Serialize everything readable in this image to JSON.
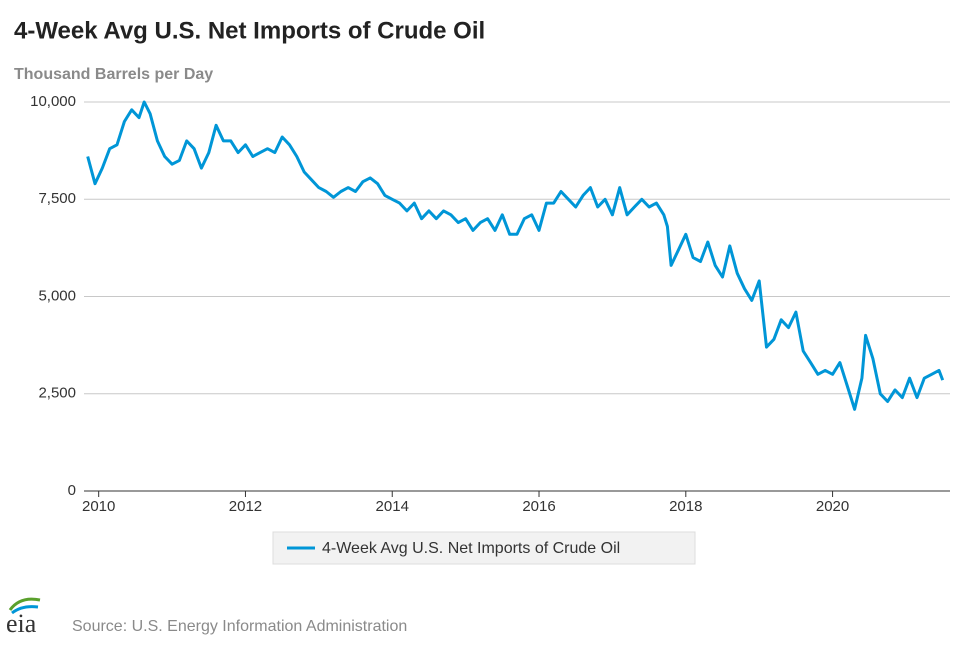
{
  "chart_data": {
    "type": "line",
    "title": "4-Week Avg U.S. Net Imports of Crude Oil",
    "y_label": "Thousand Barrels per Day",
    "source": "Source: U.S. Energy Information Administration",
    "logo": "eia",
    "xlim": [
      2009.8,
      2021.6
    ],
    "xticks": [
      2010,
      2012,
      2014,
      2016,
      2018,
      2020
    ],
    "ylim": [
      0,
      10000
    ],
    "yticks": [
      0,
      {
        "value": 2500,
        "label": "2,500"
      },
      {
        "value": 5000,
        "label": "5,000"
      },
      {
        "value": 7500,
        "label": "7,500"
      },
      {
        "value": 10000,
        "label": "10,000"
      }
    ],
    "grid": true,
    "legend": "bottom",
    "x": [
      2009.85,
      2009.95,
      2010.05,
      2010.15,
      2010.25,
      2010.35,
      2010.45,
      2010.55,
      2010.62,
      2010.7,
      2010.8,
      2010.9,
      2011.0,
      2011.1,
      2011.2,
      2011.3,
      2011.4,
      2011.5,
      2011.6,
      2011.7,
      2011.8,
      2011.9,
      2012.0,
      2012.1,
      2012.2,
      2012.3,
      2012.4,
      2012.5,
      2012.6,
      2012.7,
      2012.8,
      2012.9,
      2013.0,
      2013.1,
      2013.2,
      2013.3,
      2013.4,
      2013.5,
      2013.6,
      2013.7,
      2013.8,
      2013.9,
      2014.0,
      2014.1,
      2014.2,
      2014.3,
      2014.4,
      2014.5,
      2014.6,
      2014.7,
      2014.8,
      2014.9,
      2015.0,
      2015.1,
      2015.2,
      2015.3,
      2015.4,
      2015.5,
      2015.6,
      2015.7,
      2015.8,
      2015.9,
      2016.0,
      2016.1,
      2016.2,
      2016.3,
      2016.4,
      2016.5,
      2016.6,
      2016.7,
      2016.8,
      2016.9,
      2017.0,
      2017.1,
      2017.2,
      2017.3,
      2017.4,
      2017.5,
      2017.6,
      2017.7,
      2017.75,
      2017.8,
      2017.9,
      2018.0,
      2018.1,
      2018.2,
      2018.3,
      2018.4,
      2018.5,
      2018.6,
      2018.7,
      2018.8,
      2018.9,
      2019.0,
      2019.1,
      2019.2,
      2019.3,
      2019.4,
      2019.5,
      2019.6,
      2019.7,
      2019.8,
      2019.9,
      2020.0,
      2020.1,
      2020.2,
      2020.3,
      2020.4,
      2020.45,
      2020.55,
      2020.65,
      2020.75,
      2020.85,
      2020.95,
      2021.05,
      2021.15,
      2021.25,
      2021.35,
      2021.45,
      2021.5
    ],
    "series": [
      {
        "name": "4-Week Avg U.S. Net Imports of Crude Oil",
        "color": "#0096d7",
        "values": [
          8600,
          7900,
          8300,
          8800,
          8900,
          9500,
          9800,
          9600,
          10000,
          9700,
          9000,
          8600,
          8400,
          8500,
          9000,
          8800,
          8300,
          8700,
          9400,
          9000,
          9000,
          8700,
          8900,
          8600,
          8700,
          8800,
          8700,
          9100,
          8900,
          8600,
          8200,
          8000,
          7800,
          7700,
          7550,
          7700,
          7800,
          7700,
          7950,
          8050,
          7900,
          7600,
          7500,
          7400,
          7200,
          7400,
          7000,
          7200,
          7000,
          7200,
          7100,
          6900,
          7000,
          6700,
          6900,
          7000,
          6700,
          7100,
          6600,
          6600,
          7000,
          7100,
          6700,
          7400,
          7400,
          7700,
          7500,
          7300,
          7600,
          7800,
          7300,
          7500,
          7100,
          7800,
          7100,
          7300,
          7500,
          7300,
          7400,
          7100,
          6800,
          5800,
          6200,
          6600,
          6000,
          5900,
          6400,
          5800,
          5500,
          6300,
          5600,
          5200,
          4900,
          5400,
          3700,
          3900,
          4400,
          4200,
          4600,
          3600,
          3300,
          3000,
          3100,
          3000,
          3300,
          2700,
          2100,
          2900,
          4000,
          3400,
          2500,
          2300,
          2600,
          2400,
          2900,
          2400,
          2900,
          3000,
          3100,
          2850
        ]
      }
    ]
  }
}
